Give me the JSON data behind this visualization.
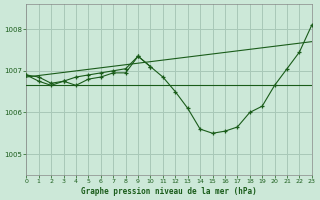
{
  "bg_color": "#cce8d8",
  "grid_color": "#a8c8b8",
  "line_color": "#1a5c1a",
  "marker_color": "#1a5c1a",
  "title": "Graphe pression niveau de la mer (hPa)",
  "xlim": [
    0,
    23
  ],
  "ylim": [
    1004.5,
    1008.6
  ],
  "yticks": [
    1005,
    1006,
    1007,
    1008
  ],
  "xticks": [
    0,
    1,
    2,
    3,
    4,
    5,
    6,
    7,
    8,
    9,
    10,
    11,
    12,
    13,
    14,
    15,
    16,
    17,
    18,
    19,
    20,
    21,
    22,
    23
  ],
  "series": [
    {
      "x": [
        0,
        23
      ],
      "y": [
        1006.65,
        1006.65
      ],
      "marker": false
    },
    {
      "x": [
        0,
        23
      ],
      "y": [
        1006.85,
        1007.7
      ],
      "marker": false
    },
    {
      "x": [
        0,
        1,
        2,
        3,
        4,
        5,
        6,
        7,
        8,
        9,
        10,
        11,
        12,
        13,
        14,
        15,
        16,
        17,
        18,
        19,
        20,
        21,
        22,
        23
      ],
      "y": [
        1006.9,
        1006.75,
        1006.65,
        1006.75,
        1006.65,
        1006.8,
        1006.85,
        1006.95,
        1006.95,
        1007.35,
        1007.1,
        1006.85,
        1006.5,
        1006.1,
        1005.6,
        1005.5,
        1005.55,
        1005.65,
        1006.0,
        1006.15,
        1006.65,
        1007.05,
        1007.45,
        1008.1
      ],
      "marker": true
    },
    {
      "x": [
        0,
        1,
        2,
        3,
        4,
        5,
        6,
        7,
        8,
        9,
        10
      ],
      "y": [
        1006.9,
        1006.85,
        1006.7,
        1006.75,
        1006.85,
        1006.9,
        1006.95,
        1007.0,
        1007.05,
        1007.35,
        1007.1
      ],
      "marker": true
    }
  ]
}
